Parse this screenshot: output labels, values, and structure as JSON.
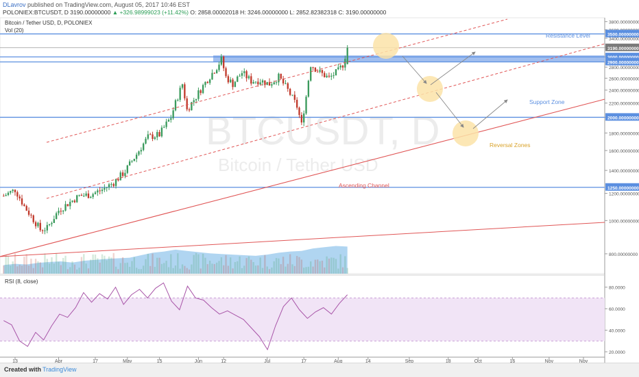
{
  "header": {
    "user": "DLavrov",
    "published_text": "published on TradingView.com, August 05, 2017 10:46 EST",
    "symbol_line": "POLONIEX:BTCUSDT, D  3190.00000000",
    "change": "▲ +326.98999023 (+11.42%)",
    "ohlc": "O: 2858.00002018  H: 3246.00000000  L: 2852.82382318  C: 3190.00000000"
  },
  "legend": {
    "series": "Bitcoin / Tether USD, D, POLONIEX",
    "volume": "Vol (20)",
    "rsi": "RSI (8, close)"
  },
  "watermark": {
    "symbol": "BTCUSDT, D",
    "name": "Bitcoin / Tether USD"
  },
  "footer": {
    "created_with": "Created with",
    "brand": "TradingView"
  },
  "colors": {
    "bull": "#3a9a5c",
    "bear": "#c0392b",
    "hline": "#5b8fe0",
    "zone": "#8fb3ec",
    "channel": "#e05555",
    "volume": "#9ccbee",
    "rsi": "#a855a8",
    "rsiband": "#f1e4f6",
    "circle": "#fbe3a8"
  },
  "chart_data": {
    "type": "candlestick",
    "y_scale": "log",
    "ylim": [
      700,
      3900
    ],
    "x_ticks": [
      "13",
      "Apr",
      "17",
      "May",
      "15",
      "Jun",
      "12",
      "Jul",
      "17",
      "Aug",
      "14",
      "Sep",
      "18",
      "Oct",
      "16",
      "Nov"
    ],
    "y_ticks": [
      800,
      1000,
      1200,
      1400,
      1600,
      1800,
      2000,
      2200,
      2400,
      2600,
      2800,
      3000,
      3200,
      3400,
      3600,
      3800
    ],
    "y_tick_labels": [
      "800.00000000",
      "1000.00000000",
      "1200.00000000",
      "1400.00000000",
      "1600.00000000",
      "1800.00000000",
      "2000.00000000",
      "2200.00000000",
      "2400.00000000",
      "2600.00000000",
      "2800.00000000",
      "3000.00000000",
      "3200.00000000",
      "3400.00000000",
      "3600.00000000",
      "3800.00000000"
    ],
    "horizontal_levels": [
      {
        "value": 3500,
        "label": "3500.00000000"
      },
      {
        "value": 3190,
        "label": "3190.00000000"
      },
      {
        "value": 3000,
        "label": "3000.00000000"
      },
      {
        "value": 2900,
        "label": "2900.00000000"
      },
      {
        "value": 2000,
        "label": "2000.00000000"
      },
      {
        "value": 1250,
        "label": "1250.00000000"
      }
    ],
    "price_path": [
      [
        "Mar 8",
        1180
      ],
      [
        "Mar 13",
        1230
      ],
      [
        "Mar 17",
        1100
      ],
      [
        "Mar 20",
        1030
      ],
      [
        "Mar 24",
        940
      ],
      [
        "Mar 27",
        950
      ],
      [
        "Apr 1",
        1070
      ],
      [
        "Apr 5",
        1120
      ],
      [
        "Apr 10",
        1180
      ],
      [
        "Apr 15",
        1190
      ],
      [
        "Apr 20",
        1230
      ],
      [
        "Apr 25",
        1290
      ],
      [
        "Apr 30",
        1390
      ],
      [
        "May 5",
        1560
      ],
      [
        "May 10",
        1750
      ],
      [
        "May 15",
        1780
      ],
      [
        "May 20",
        2000
      ],
      [
        "May 25",
        2500
      ],
      [
        "May 27",
        2100
      ],
      [
        "May 31",
        2300
      ],
      [
        "Jun 5",
        2580
      ],
      [
        "Jun 9",
        2800
      ],
      [
        "Jun 11",
        2950
      ],
      [
        "Jun 13",
        2620
      ],
      [
        "Jun 16",
        2500
      ],
      [
        "Jun 20",
        2700
      ],
      [
        "Jun 24",
        2550
      ],
      [
        "Jun 28",
        2560
      ],
      [
        "Jul 2",
        2500
      ],
      [
        "Jul 6",
        2620
      ],
      [
        "Jul 10",
        2400
      ],
      [
        "Jul 14",
        2150
      ],
      [
        "Jul 16",
        1900
      ],
      [
        "Jul 18",
        2300
      ],
      [
        "Jul 20",
        2850
      ],
      [
        "Jul 24",
        2700
      ],
      [
        "Jul 28",
        2600
      ],
      [
        "Aug 1",
        2730
      ],
      [
        "Aug 3",
        2850
      ],
      [
        "Aug 5",
        3190
      ]
    ],
    "volume_profile": [
      0.28,
      0.32,
      0.3,
      0.35,
      0.38,
      0.4,
      0.36,
      0.42,
      0.45,
      0.48,
      0.5,
      0.52,
      0.6,
      0.68,
      0.72,
      0.78,
      0.74,
      0.7,
      0.66,
      0.64,
      0.62,
      0.6,
      0.58,
      0.62,
      0.68,
      0.72,
      0.74,
      0.82,
      0.86,
      0.9,
      0.88
    ],
    "rsi": {
      "ylim": [
        15,
        90
      ],
      "y_ticks": [
        20,
        40,
        60,
        80
      ],
      "y_tick_labels": [
        "20.0000",
        "40.0000",
        "60.0000",
        "80.0000"
      ],
      "bands": [
        30,
        70
      ],
      "values": [
        49,
        45,
        30,
        25,
        38,
        31,
        44,
        55,
        52,
        61,
        75,
        66,
        74,
        69,
        80,
        64,
        73,
        78,
        70,
        79,
        84,
        67,
        59,
        81,
        70,
        68,
        61,
        55,
        58,
        54,
        50,
        42,
        34,
        22,
        44,
        62,
        70,
        59,
        51,
        57,
        61,
        55,
        65,
        73
      ]
    },
    "annotations": [
      {
        "text": "Resistance Level",
        "color": "#5b8fe0"
      },
      {
        "text": "Support Zone",
        "color": "#5b8fe0"
      },
      {
        "text": "Reversal Zones",
        "color": "#d9a22a"
      },
      {
        "text": "Ascending Channel",
        "color": "#e05555"
      }
    ]
  }
}
